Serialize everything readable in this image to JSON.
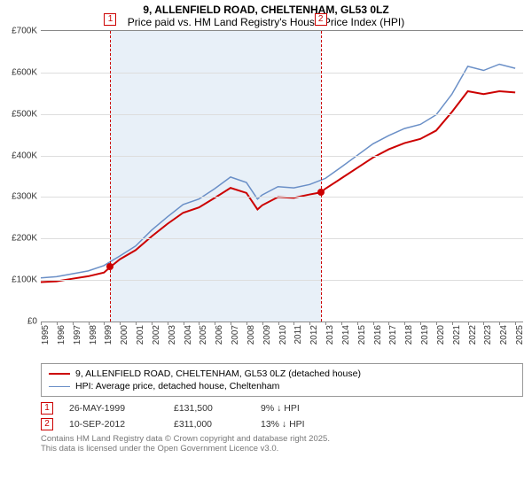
{
  "title": {
    "line1": "9, ALLENFIELD ROAD, CHELTENHAM, GL53 0LZ",
    "line2": "Price paid vs. HM Land Registry's House Price Index (HPI)"
  },
  "chart": {
    "type": "line",
    "background_color": "#ffffff",
    "grid_color": "#dddddd",
    "band_color": "#e8f0f8",
    "axis_color": "#888888",
    "label_fontsize": 10,
    "title_fontsize": 12,
    "x": {
      "min": 1995,
      "max": 2025.5,
      "ticks": [
        1995,
        1996,
        1997,
        1998,
        1999,
        2000,
        2001,
        2002,
        2003,
        2004,
        2005,
        2006,
        2007,
        2008,
        2009,
        2010,
        2011,
        2012,
        2013,
        2014,
        2015,
        2016,
        2017,
        2018,
        2019,
        2020,
        2021,
        2022,
        2023,
        2024,
        2025
      ]
    },
    "y": {
      "min": 0,
      "max": 700000,
      "ticks": [
        0,
        100000,
        200000,
        300000,
        400000,
        500000,
        600000,
        700000
      ],
      "labels": [
        "£0",
        "£100K",
        "£200K",
        "£300K",
        "£400K",
        "£500K",
        "£600K",
        "£700K"
      ]
    },
    "band": {
      "start": 1999.4,
      "end": 2012.7
    },
    "series": [
      {
        "name": "price_paid",
        "label": "9, ALLENFIELD ROAD, CHELTENHAM, GL53 0LZ (detached house)",
        "color": "#cc0000",
        "width": 2,
        "points": [
          [
            1995,
            95000
          ],
          [
            1996,
            97000
          ],
          [
            1997,
            103000
          ],
          [
            1998,
            109000
          ],
          [
            1999,
            118000
          ],
          [
            1999.4,
            131500
          ],
          [
            2000,
            150000
          ],
          [
            2001,
            172000
          ],
          [
            2002,
            205000
          ],
          [
            2003,
            235000
          ],
          [
            2004,
            262000
          ],
          [
            2005,
            275000
          ],
          [
            2006,
            298000
          ],
          [
            2007,
            322000
          ],
          [
            2008,
            310000
          ],
          [
            2008.7,
            270000
          ],
          [
            2009,
            280000
          ],
          [
            2010,
            300000
          ],
          [
            2011,
            298000
          ],
          [
            2012,
            306000
          ],
          [
            2012.7,
            311000
          ],
          [
            2013,
            320000
          ],
          [
            2014,
            345000
          ],
          [
            2015,
            370000
          ],
          [
            2016,
            395000
          ],
          [
            2017,
            415000
          ],
          [
            2018,
            430000
          ],
          [
            2019,
            440000
          ],
          [
            2020,
            460000
          ],
          [
            2021,
            505000
          ],
          [
            2022,
            555000
          ],
          [
            2023,
            548000
          ],
          [
            2024,
            555000
          ],
          [
            2025,
            552000
          ]
        ]
      },
      {
        "name": "hpi",
        "label": "HPI: Average price, detached house, Cheltenham",
        "color": "#6a8fc7",
        "width": 1.5,
        "points": [
          [
            1995,
            105000
          ],
          [
            1996,
            108000
          ],
          [
            1997,
            115000
          ],
          [
            1998,
            122000
          ],
          [
            1999,
            135000
          ],
          [
            2000,
            158000
          ],
          [
            2001,
            182000
          ],
          [
            2002,
            220000
          ],
          [
            2003,
            252000
          ],
          [
            2004,
            282000
          ],
          [
            2005,
            295000
          ],
          [
            2006,
            320000
          ],
          [
            2007,
            348000
          ],
          [
            2008,
            335000
          ],
          [
            2008.7,
            295000
          ],
          [
            2009,
            305000
          ],
          [
            2010,
            325000
          ],
          [
            2011,
            322000
          ],
          [
            2012,
            330000
          ],
          [
            2013,
            345000
          ],
          [
            2014,
            372000
          ],
          [
            2015,
            400000
          ],
          [
            2016,
            428000
          ],
          [
            2017,
            448000
          ],
          [
            2018,
            465000
          ],
          [
            2019,
            475000
          ],
          [
            2020,
            498000
          ],
          [
            2021,
            548000
          ],
          [
            2022,
            615000
          ],
          [
            2023,
            605000
          ],
          [
            2024,
            620000
          ],
          [
            2025,
            610000
          ]
        ]
      }
    ],
    "markers": [
      {
        "id": "1",
        "x": 1999.4,
        "y": 131500
      },
      {
        "id": "2",
        "x": 2012.7,
        "y": 311000
      }
    ]
  },
  "legend": {
    "items": [
      {
        "color": "#cc0000",
        "width": 2,
        "label_path": "chart.series.0.label"
      },
      {
        "color": "#6a8fc7",
        "width": 1.5,
        "label_path": "chart.series.1.label"
      }
    ]
  },
  "sales": [
    {
      "id": "1",
      "date": "26-MAY-1999",
      "price": "£131,500",
      "diff": "9% ↓ HPI"
    },
    {
      "id": "2",
      "date": "10-SEP-2012",
      "price": "£311,000",
      "diff": "13% ↓ HPI"
    }
  ],
  "footer": {
    "line1": "Contains HM Land Registry data © Crown copyright and database right 2025.",
    "line2": "This data is licensed under the Open Government Licence v3.0."
  }
}
